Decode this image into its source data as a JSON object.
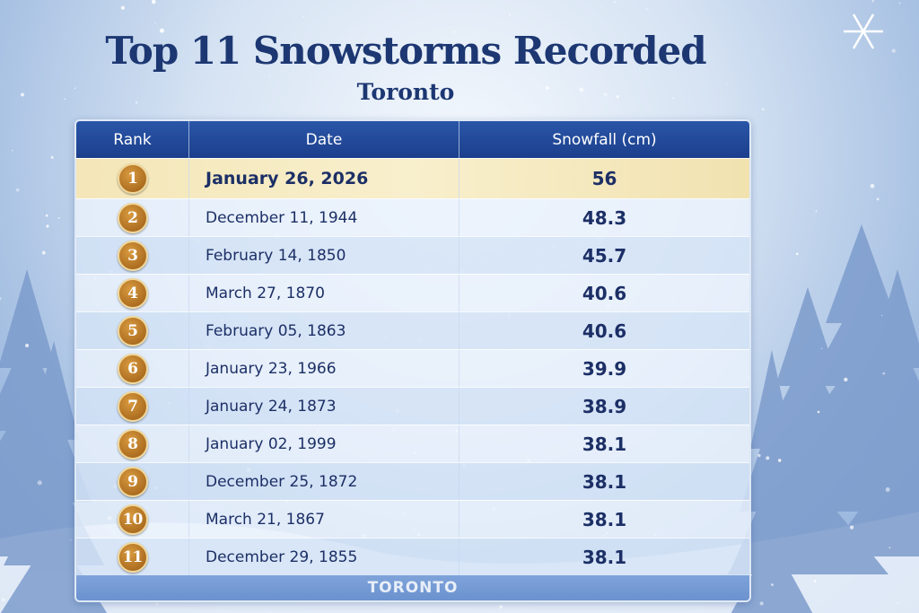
{
  "title": "Top 11 Snowstorms Recorded",
  "subtitle": "Toronto",
  "footer": "TORONTO",
  "colors": {
    "header": "#1f4594",
    "highlight_row": "#f4e6b8",
    "text": "#1c2f66",
    "medal": "#b0701f"
  },
  "icons": [
    "snowflake-icon",
    "medal-icon"
  ],
  "chart_data": {
    "type": "table",
    "columns": [
      "Rank",
      "Date",
      "Snowfall (cm)"
    ],
    "rows": [
      {
        "rank": "1",
        "date": "January 26, 2026",
        "snowfall": "56"
      },
      {
        "rank": "2",
        "date": "December 11, 1944",
        "snowfall": "48.3"
      },
      {
        "rank": "3",
        "date": "February 14, 1850",
        "snowfall": "45.7"
      },
      {
        "rank": "4",
        "date": "March 27, 1870",
        "snowfall": "40.6"
      },
      {
        "rank": "5",
        "date": "February 05, 1863",
        "snowfall": "40.6"
      },
      {
        "rank": "6",
        "date": "January 23, 1966",
        "snowfall": "39.9"
      },
      {
        "rank": "7",
        "date": "January 24, 1873",
        "snowfall": "38.9"
      },
      {
        "rank": "8",
        "date": "January 02, 1999",
        "snowfall": "38.1"
      },
      {
        "rank": "9",
        "date": "December 25, 1872",
        "snowfall": "38.1"
      },
      {
        "rank": "10",
        "date": "March 21, 1867",
        "snowfall": "38.1"
      },
      {
        "rank": "11",
        "date": "December 29, 1855",
        "snowfall": "38.1"
      }
    ]
  }
}
